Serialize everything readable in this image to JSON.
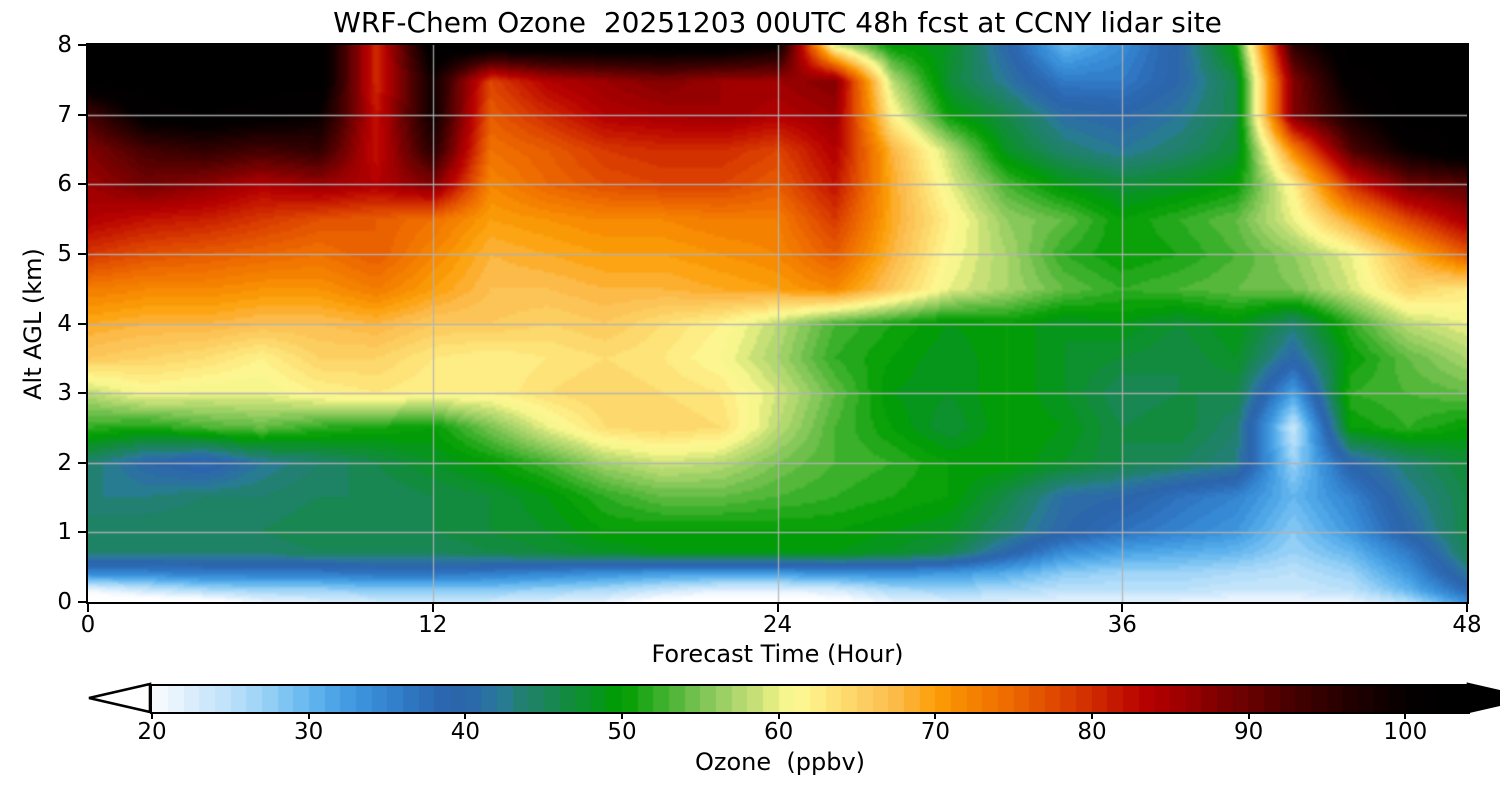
{
  "title": "WRF-Chem Ozone  20251203 00UTC 48h fcst at CCNY lidar site",
  "axes": {
    "xlabel": "Forecast Time (Hour)",
    "ylabel": "Alt AGL (km)",
    "xlim": [
      0,
      48
    ],
    "ylim": [
      0,
      8
    ],
    "xticks": [
      0,
      12,
      24,
      36,
      48
    ],
    "yticks": [
      0,
      1,
      2,
      3,
      4,
      5,
      6,
      7,
      8
    ],
    "grid": true,
    "gridline_color": "#b2b2b2",
    "vertical_gridlines_hours": [
      12,
      24,
      36
    ],
    "horizontal_gridlines_km": [
      1,
      2,
      3,
      4,
      5,
      6,
      7
    ]
  },
  "colorbar": {
    "label": "Ozone  (ppbv)",
    "ticks": [
      20,
      30,
      40,
      50,
      60,
      70,
      80,
      90,
      100
    ],
    "range": [
      20,
      104
    ],
    "extend": "both",
    "under_color": "#ffffff",
    "over_color": "#000000"
  },
  "chart_data": {
    "type": "heatmap",
    "title": "WRF-Chem Ozone  20251203 00UTC 48h fcst at CCNY lidar site",
    "xlabel": "Forecast Time (Hour)",
    "ylabel": "Alt AGL (km)",
    "unit": "ppbv",
    "xlim": [
      0,
      48
    ],
    "ylim": [
      0,
      8
    ],
    "x_hours": [
      0,
      2,
      4,
      6,
      8,
      10,
      12,
      14,
      16,
      18,
      20,
      22,
      24,
      26,
      28,
      30,
      32,
      34,
      36,
      38,
      40,
      42,
      44,
      46,
      48
    ],
    "y_km": [
      0,
      0.15,
      0.4,
      0.7,
      1,
      1.5,
      2,
      2.5,
      3,
      3.5,
      4,
      4.5,
      5,
      5.5,
      6,
      6.5,
      7,
      7.5,
      8
    ],
    "values": [
      [
        17,
        18,
        19,
        22,
        23,
        24,
        24,
        24,
        23,
        22,
        19,
        18,
        18,
        19,
        22,
        23,
        23,
        22,
        22,
        22,
        21,
        21,
        22,
        26,
        34
      ],
      [
        21,
        24,
        26,
        27,
        27,
        28,
        28,
        28,
        27,
        26,
        24,
        22,
        22,
        23,
        26,
        27,
        26,
        25,
        25,
        25,
        24,
        24,
        25,
        30,
        38
      ],
      [
        35,
        35,
        36,
        36,
        36,
        37,
        37,
        36,
        35,
        34,
        33,
        33,
        33,
        34,
        34,
        33,
        31,
        28,
        27,
        27,
        26,
        25,
        27,
        33,
        42
      ],
      [
        44,
        44,
        44,
        44,
        45,
        45,
        45,
        46,
        47,
        48,
        49,
        49,
        49,
        49,
        48,
        46,
        40,
        34,
        32,
        31,
        30,
        27,
        30,
        36,
        45
      ],
      [
        45,
        45,
        45,
        45,
        46,
        46,
        46,
        47,
        48,
        50,
        50,
        50,
        50,
        50,
        49,
        48,
        44,
        40,
        37,
        35,
        33,
        28,
        33,
        40,
        46
      ],
      [
        43,
        43,
        44,
        44,
        45,
        45,
        46,
        47,
        49,
        52,
        54,
        54,
        53,
        52,
        51,
        50,
        46,
        41,
        40,
        37,
        35,
        30,
        35,
        42,
        46
      ],
      [
        44,
        40,
        38,
        42,
        44,
        46,
        48,
        50,
        53,
        57,
        59,
        58,
        55,
        53,
        52,
        50,
        50,
        48,
        46,
        45,
        43,
        27,
        40,
        44,
        47
      ],
      [
        52,
        51,
        53,
        54,
        52,
        51,
        50,
        55,
        60,
        64,
        65,
        64,
        58,
        53,
        50,
        47,
        50,
        49,
        46,
        47,
        44,
        24,
        50,
        52,
        50
      ],
      [
        58,
        61,
        60,
        60,
        62,
        63,
        62,
        62,
        64,
        65,
        64,
        63,
        59,
        54,
        49,
        48,
        50,
        48,
        45,
        46,
        46,
        32,
        52,
        53,
        54
      ],
      [
        66,
        65,
        64,
        62,
        65,
        65,
        63,
        62,
        63,
        64,
        63,
        61,
        57,
        52,
        50,
        48,
        50,
        48,
        47,
        46,
        48,
        40,
        50,
        54,
        57
      ],
      [
        69,
        68,
        68,
        67,
        67,
        68,
        66,
        66,
        65,
        66,
        64,
        62,
        58,
        53,
        51,
        49,
        50,
        48,
        49,
        47,
        49,
        44,
        52,
        58,
        60
      ],
      [
        73,
        72,
        72,
        71,
        71,
        73,
        70,
        67,
        67,
        68,
        68,
        69,
        70,
        72,
        66,
        60,
        57,
        54,
        52,
        53,
        54,
        55,
        59,
        65,
        63
      ],
      [
        79,
        77,
        76,
        75,
        74,
        76,
        72,
        68,
        69,
        70,
        70,
        71,
        72,
        76,
        68,
        61,
        57,
        52,
        50,
        51,
        53,
        56,
        60,
        68,
        76
      ],
      [
        84,
        82,
        81,
        79,
        77,
        76,
        74,
        70,
        71,
        72,
        72,
        73,
        73,
        79,
        69,
        62,
        56,
        54,
        50,
        52,
        54,
        60,
        69,
        78,
        85
      ],
      [
        86,
        89,
        87,
        84,
        86,
        84,
        88,
        72,
        75,
        77,
        78,
        78,
        76,
        82,
        69,
        60,
        53,
        49,
        47,
        48,
        50,
        62,
        80,
        89,
        91
      ],
      [
        88,
        93,
        95,
        93,
        95,
        82,
        96,
        74,
        76,
        79,
        80,
        80,
        78,
        84,
        68,
        58,
        48,
        44,
        42,
        44,
        47,
        72,
        92,
        100,
        104
      ],
      [
        93,
        102,
        103,
        102,
        100,
        82,
        99,
        76,
        80,
        84,
        85,
        86,
        84,
        86,
        62,
        50,
        46,
        41,
        40,
        42,
        46,
        88,
        98,
        104,
        104
      ],
      [
        104,
        104,
        104,
        104,
        104,
        80,
        99,
        78,
        84,
        86,
        88,
        86,
        86,
        88,
        58,
        47,
        42,
        36,
        36,
        40,
        46,
        88,
        102,
        104,
        104
      ],
      [
        104,
        104,
        104,
        104,
        104,
        80,
        103,
        103,
        103,
        103,
        103,
        103,
        100,
        60,
        50,
        48,
        40,
        30,
        34,
        40,
        50,
        95,
        104,
        104,
        104
      ]
    ],
    "colormap_stops": [
      [
        17,
        "#ffffff"
      ],
      [
        20,
        "#fbfdff"
      ],
      [
        21,
        "#eef6fe"
      ],
      [
        23,
        "#d5ebfc"
      ],
      [
        25,
        "#bce1fa"
      ],
      [
        27,
        "#9dd4f7"
      ],
      [
        29,
        "#75c0f2"
      ],
      [
        31,
        "#55acea"
      ],
      [
        33,
        "#3e97de"
      ],
      [
        35,
        "#3484d0"
      ],
      [
        37,
        "#2e72bd"
      ],
      [
        39,
        "#2b64ad"
      ],
      [
        41,
        "#2c6da7"
      ],
      [
        42.5,
        "#287c92"
      ],
      [
        43.5,
        "#228073"
      ],
      [
        45,
        "#1b855c"
      ],
      [
        46,
        "#158948"
      ],
      [
        47,
        "#108d36"
      ],
      [
        48,
        "#0a9326"
      ],
      [
        49,
        "#039a11"
      ],
      [
        50,
        "#009d00"
      ],
      [
        51.5,
        "#22a81a"
      ],
      [
        53,
        "#48b433"
      ],
      [
        55,
        "#7bc353"
      ],
      [
        57,
        "#a8d56b"
      ],
      [
        58.5,
        "#c6e077"
      ],
      [
        60,
        "#eef285"
      ],
      [
        61,
        "#fdfa95"
      ],
      [
        62,
        "#fdf28b"
      ],
      [
        63,
        "#fde87d"
      ],
      [
        64,
        "#fdde72"
      ],
      [
        65,
        "#fdd265"
      ],
      [
        66,
        "#fcc95b"
      ],
      [
        67,
        "#fcc050"
      ],
      [
        68,
        "#fcb53f"
      ],
      [
        69,
        "#fca81e"
      ],
      [
        70,
        "#fca008"
      ],
      [
        71,
        "#f99203"
      ],
      [
        72,
        "#f68601"
      ],
      [
        73,
        "#f37c00"
      ],
      [
        74,
        "#f07200"
      ],
      [
        75,
        "#ec6700"
      ],
      [
        76,
        "#e75b00"
      ],
      [
        77,
        "#e25000"
      ],
      [
        78,
        "#dd4500"
      ],
      [
        79,
        "#d63700"
      ],
      [
        80,
        "#d02b00"
      ],
      [
        81,
        "#c91f00"
      ],
      [
        82,
        "#c21200"
      ],
      [
        83,
        "#bb0500"
      ],
      [
        84,
        "#b00000"
      ],
      [
        85,
        "#a80000"
      ],
      [
        86,
        "#9b0000"
      ],
      [
        87,
        "#8f0000"
      ],
      [
        88,
        "#800000"
      ],
      [
        89,
        "#730101"
      ],
      [
        90,
        "#6a0202"
      ],
      [
        91,
        "#5c0000"
      ],
      [
        92,
        "#500000"
      ],
      [
        93,
        "#450000"
      ],
      [
        94,
        "#3a0000"
      ],
      [
        95,
        "#300000"
      ],
      [
        96,
        "#280000"
      ],
      [
        97,
        "#1f0000"
      ],
      [
        98,
        "#160000"
      ],
      [
        99,
        "#0e0000"
      ],
      [
        100,
        "#060000"
      ],
      [
        101,
        "#030000"
      ],
      [
        104,
        "#000000"
      ]
    ]
  }
}
